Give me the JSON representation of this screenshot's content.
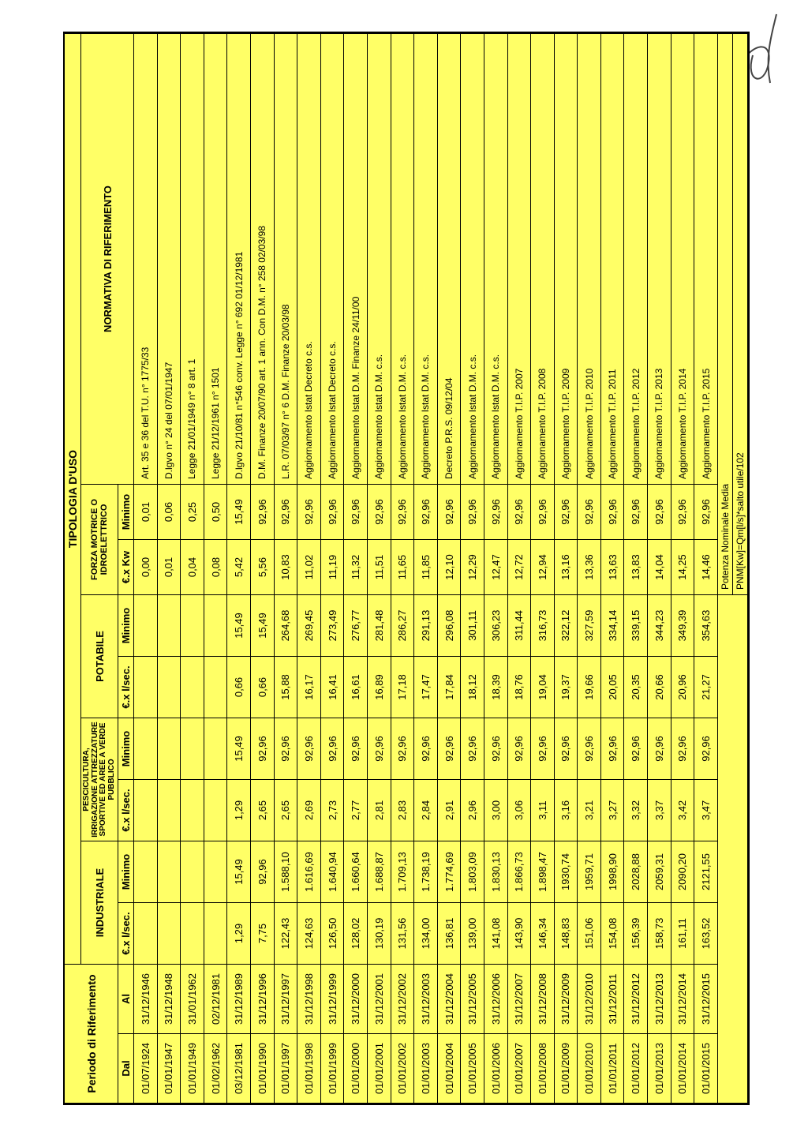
{
  "banner": "TIPOLOGIA D'USO",
  "headers": {
    "periodo": "Periodo di Riferimento",
    "dal": "Dal",
    "al": "Al",
    "industriale": "INDUSTRIALE",
    "pesc": "PESCICULTURA, IRRIGAZIONE ATTREZZATURE SPORTIVE ED AREE A VERDE PUBBLICO",
    "potabile": "POTABILE",
    "forza": "FORZA MOTRICE O IDROELETTRICO",
    "norm": "NORMATIVA DI RIFERIMENTO",
    "eurlsec": "€.x l/sec.",
    "minimo": "Minimo",
    "eurkw": "€.x Kw"
  },
  "rows": [
    {
      "dal": "01/07/1924",
      "al": "31/12/1946",
      "ind1": "",
      "ind2": "",
      "pes1": "",
      "pes2": "",
      "pot1": "",
      "pot2": "",
      "fm1": "0,00",
      "fm2": "0,01",
      "norm": "Art. 35 e 36 del T.U. n° 1775/33"
    },
    {
      "dal": "01/01/1947",
      "al": "31/12/1948",
      "ind1": "",
      "ind2": "",
      "pes1": "",
      "pes2": "",
      "pot1": "",
      "pot2": "",
      "fm1": "0,01",
      "fm2": "0,06",
      "norm": "D.lgvo n° 24 del 07/01/1947"
    },
    {
      "dal": "01/01/1949",
      "al": "31/01/1962",
      "ind1": "",
      "ind2": "",
      "pes1": "",
      "pes2": "",
      "pot1": "",
      "pot2": "",
      "fm1": "0,04",
      "fm2": "0,25",
      "norm": "Legge 21/01/1949 n° 8 art. 1"
    },
    {
      "dal": "01/02/1962",
      "al": "02/12/1981",
      "ind1": "",
      "ind2": "",
      "pes1": "",
      "pes2": "",
      "pot1": "",
      "pot2": "",
      "fm1": "0,08",
      "fm2": "0,50",
      "norm": "Legge 21/12/1961 n° 1501"
    },
    {
      "dal": "03/12/1981",
      "al": "31/12/1989",
      "ind1": "1,29",
      "ind2": "15,49",
      "pes1": "1,29",
      "pes2": "15,49",
      "pot1": "0,66",
      "pot2": "15,49",
      "fm1": "5,42",
      "fm2": "15,49",
      "norm": "D.lgvo 21/10/81 n°546 conv. Legge n° 692 01/12/1981"
    },
    {
      "dal": "01/01/1990",
      "al": "31/12/1996",
      "ind1": "7,75",
      "ind2": "92,96",
      "pes1": "2,65",
      "pes2": "92,96",
      "pot1": "0,66",
      "pot2": "15,49",
      "fm1": "5,56",
      "fm2": "92,96",
      "norm": "D.M. Finanze 20/07/90 art. 1 ann. Con D.M. n° 258 02/03/98"
    },
    {
      "dal": "01/01/1997",
      "al": "31/12/1997",
      "ind1": "122,43",
      "ind2": "1.588,10",
      "pes1": "2,65",
      "pes2": "92,96",
      "pot1": "15,88",
      "pot2": "264,68",
      "fm1": "10,83",
      "fm2": "92,96",
      "norm": "L.R. 07/03/97 n° 6 D.M. Finanze 20/03/98"
    },
    {
      "dal": "01/01/1998",
      "al": "31/12/1998",
      "ind1": "124,63",
      "ind2": "1.616,69",
      "pes1": "2,69",
      "pes2": "92,96",
      "pot1": "16,17",
      "pot2": "269,45",
      "fm1": "11,02",
      "fm2": "92,96",
      "norm": "Aggiornamento Istat Decreto c.s."
    },
    {
      "dal": "01/01/1999",
      "al": "31/12/1999",
      "ind1": "126,50",
      "ind2": "1.640,94",
      "pes1": "2,73",
      "pes2": "92,96",
      "pot1": "16,41",
      "pot2": "273,49",
      "fm1": "11,19",
      "fm2": "92,96",
      "norm": "Aggiornamento Istat Decreto c.s."
    },
    {
      "dal": "01/01/2000",
      "al": "31/12/2000",
      "ind1": "128,02",
      "ind2": "1.660,64",
      "pes1": "2,77",
      "pes2": "92,96",
      "pot1": "16,61",
      "pot2": "276,77",
      "fm1": "11,32",
      "fm2": "92,96",
      "norm": "Aggiornamento Istat D.M. Finanze 24/11/00"
    },
    {
      "dal": "01/01/2001",
      "al": "31/12/2001",
      "ind1": "130,19",
      "ind2": "1.688,87",
      "pes1": "2,81",
      "pes2": "92,96",
      "pot1": "16,89",
      "pot2": "281,48",
      "fm1": "11,51",
      "fm2": "92,96",
      "norm": "Aggiornamento Istat D.M. c.s."
    },
    {
      "dal": "01/01/2002",
      "al": "31/12/2002",
      "ind1": "131,56",
      "ind2": "1.709,13",
      "pes1": "2,83",
      "pes2": "92,96",
      "pot1": "17,18",
      "pot2": "286,27",
      "fm1": "11,65",
      "fm2": "92,96",
      "norm": "Aggiornamento Istat D.M. c.s."
    },
    {
      "dal": "01/01/2003",
      "al": "31/12/2003",
      "ind1": "134,00",
      "ind2": "1.738,19",
      "pes1": "2,84",
      "pes2": "92,96",
      "pot1": "17,47",
      "pot2": "291,13",
      "fm1": "11,85",
      "fm2": "92,96",
      "norm": "Aggiornamento Istat D.M. c.s."
    },
    {
      "dal": "01/01/2004",
      "al": "31/12/2004",
      "ind1": "136,81",
      "ind2": "1.774,69",
      "pes1": "2,91",
      "pes2": "92,96",
      "pot1": "17,84",
      "pot2": "296,08",
      "fm1": "12,10",
      "fm2": "92,96",
      "norm": "Decreto P.R.S. 09/12/04"
    },
    {
      "dal": "01/01/2005",
      "al": "31/12/2005",
      "ind1": "139,00",
      "ind2": "1.803,09",
      "pes1": "2,96",
      "pes2": "92,96",
      "pot1": "18,12",
      "pot2": "301,11",
      "fm1": "12,29",
      "fm2": "92,96",
      "norm": "Aggiornamento Istat D.M. c.s."
    },
    {
      "dal": "01/01/2006",
      "al": "31/12/2006",
      "ind1": "141,08",
      "ind2": "1.830,13",
      "pes1": "3,00",
      "pes2": "92,96",
      "pot1": "18,39",
      "pot2": "306,23",
      "fm1": "12,47",
      "fm2": "92,96",
      "norm": "Aggiornamento Istat D.M. c.s."
    },
    {
      "dal": "01/01/2007",
      "al": "31/12/2007",
      "ind1": "143,90",
      "ind2": "1.866,73",
      "pes1": "3,06",
      "pes2": "92,96",
      "pot1": "18,76",
      "pot2": "311,44",
      "fm1": "12,72",
      "fm2": "92,96",
      "norm": "Aggiornamento T.I.P. 2007"
    },
    {
      "dal": "01/01/2008",
      "al": "31/12/2008",
      "ind1": "146,34",
      "ind2": "1.898,47",
      "pes1": "3,11",
      "pes2": "92,96",
      "pot1": "19,04",
      "pot2": "316,73",
      "fm1": "12,94",
      "fm2": "92,96",
      "norm": "Aggiornamento T.I.P. 2008"
    },
    {
      "dal": "01/01/2009",
      "al": "31/12/2009",
      "ind1": "148,83",
      "ind2": "1930,74",
      "pes1": "3,16",
      "pes2": "92,96",
      "pot1": "19,37",
      "pot2": "322,12",
      "fm1": "13,16",
      "fm2": "92,96",
      "norm": "Aggiornamento T.I.P. 2009"
    },
    {
      "dal": "01/01/2010",
      "al": "31/12/2010",
      "ind1": "151,06",
      "ind2": "1959,71",
      "pes1": "3,21",
      "pes2": "92,96",
      "pot1": "19,66",
      "pot2": "327,59",
      "fm1": "13,36",
      "fm2": "92,96",
      "norm": "Aggiornamento T.I.P. 2010"
    },
    {
      "dal": "01/01/2011",
      "al": "31/12/2011",
      "ind1": "154,08",
      "ind2": "1998,90",
      "pes1": "3,27",
      "pes2": "92,96",
      "pot1": "20,05",
      "pot2": "334,14",
      "fm1": "13,63",
      "fm2": "92,96",
      "norm": "Aggiornamento T.I.P. 2011"
    },
    {
      "dal": "01/01/2012",
      "al": "31/12/2012",
      "ind1": "156,39",
      "ind2": "2028,88",
      "pes1": "3,32",
      "pes2": "92,96",
      "pot1": "20,35",
      "pot2": "339,15",
      "fm1": "13,83",
      "fm2": "92,96",
      "norm": "Aggiornamento T.I.P. 2012"
    },
    {
      "dal": "01/01/2013",
      "al": "31/12/2013",
      "ind1": "158,73",
      "ind2": "2059,31",
      "pes1": "3,37",
      "pes2": "92,96",
      "pot1": "20,66",
      "pot2": "344,23",
      "fm1": "14,04",
      "fm2": "92,96",
      "norm": "Aggiornamento T.I.P. 2013"
    },
    {
      "dal": "01/01/2014",
      "al": "31/12/2014",
      "ind1": "161,11",
      "ind2": "2090,20",
      "pes1": "3,42",
      "pes2": "92,96",
      "pot1": "20,96",
      "pot2": "349,39",
      "fm1": "14,25",
      "fm2": "92,96",
      "norm": "Aggiornamento T.I.P. 2014"
    },
    {
      "dal": "01/01/2015",
      "al": "31/12/2015",
      "ind1": "163,52",
      "ind2": "2121,55",
      "pes1": "3,47",
      "pes2": "92,96",
      "pot1": "21,27",
      "pot2": "354,63",
      "fm1": "14,46",
      "fm2": "92,96",
      "norm": "Aggiornamento T.I.P. 2015"
    }
  ],
  "footer": {
    "line1": "Potenza Nominale Media",
    "line2": "PNM[Kw]=Qm[l/s]*salto utile/102"
  },
  "style": {
    "bg": "#ffff66",
    "border": "#000000",
    "font_size_pt": 10
  }
}
